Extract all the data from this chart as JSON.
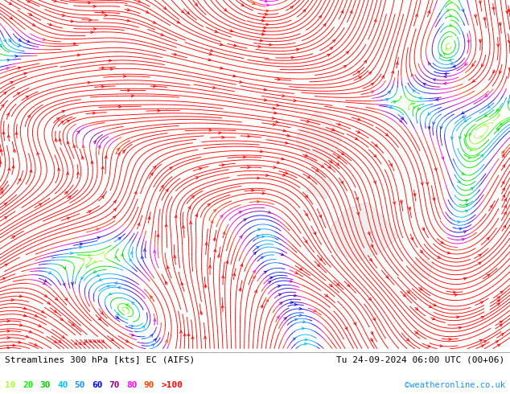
{
  "title_left": "Streamlines 300 hPa [kts] EC (AIFS)",
  "title_right": "Tu 24-09-2024 06:00 UTC (00+06)",
  "watermark": "©weatheronline.co.uk",
  "legend_values": [
    "10",
    "20",
    "30",
    "40",
    "50",
    "60",
    "70",
    "80",
    "90",
    ">100"
  ],
  "legend_colors": [
    "#adff2f",
    "#00ff00",
    "#00cd00",
    "#00bfff",
    "#1e90ff",
    "#0000ff",
    "#8b008b",
    "#ff00ff",
    "#ff4500",
    "#ff0000"
  ],
  "bg_color": "#ffffff",
  "figsize": [
    6.34,
    4.9
  ],
  "dpi": 100,
  "colormap_hex": [
    "#c8c8c8",
    "#adff2f",
    "#00ff00",
    "#00cd00",
    "#00bfff",
    "#1e90ff",
    "#0000ff",
    "#8b008b",
    "#ff00ff",
    "#ff4500",
    "#ff0000"
  ],
  "colormap_speeds": [
    0,
    10,
    20,
    30,
    40,
    50,
    60,
    70,
    80,
    90,
    100
  ]
}
